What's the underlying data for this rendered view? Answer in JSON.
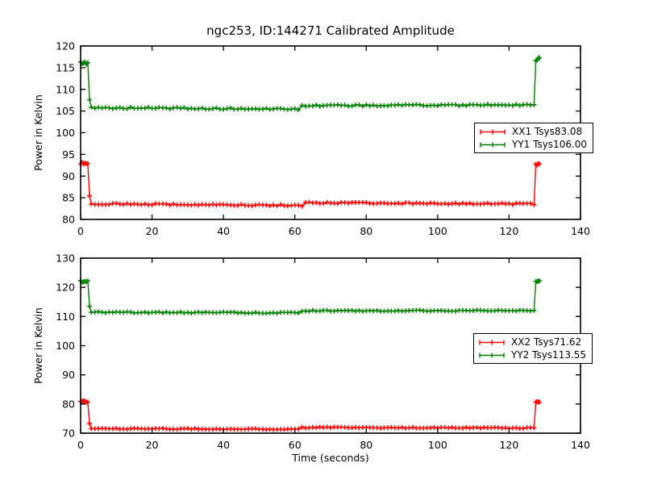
{
  "title": "ngc253, ID:144271 Calibrated Amplitude",
  "colors": {
    "red": "#ff0000",
    "green": "#008000",
    "axis": "#000000",
    "background": "#ffffff"
  },
  "chart_data": [
    {
      "type": "line",
      "marker": "+",
      "ylabel": "Power in Kelvin",
      "xlabel": "",
      "xlim": [
        0,
        140
      ],
      "ylim": [
        80,
        120
      ],
      "xticks": [
        0,
        20,
        40,
        60,
        80,
        100,
        120,
        140
      ],
      "yticks": [
        80,
        85,
        90,
        95,
        100,
        105,
        110,
        115,
        120
      ],
      "grid": false,
      "legend_position": "center right",
      "series": [
        {
          "name": "XX1 Tsys83.08",
          "color": "#ff0000",
          "segments": [
            {
              "t0": 0,
              "t1": 2,
              "y0": 93.0,
              "y1": 92.9,
              "step": 0.4,
              "noise": 0.25
            },
            {
              "t0": 2.5,
              "t1": 2.5,
              "y0": 85.4,
              "y1": 85.4,
              "step": 1,
              "noise": 0
            },
            {
              "t0": 3,
              "t1": 61,
              "y0": 83.6,
              "y1": 83.25,
              "step": 1,
              "noise": 0.16
            },
            {
              "t0": 62,
              "t1": 62,
              "y0": 83.05,
              "y1": 83.05,
              "step": 1,
              "noise": 0
            },
            {
              "t0": 63,
              "t1": 127,
              "y0": 83.85,
              "y1": 83.55,
              "step": 1,
              "noise": 0.16
            },
            {
              "t0": 127.5,
              "t1": 128.5,
              "y0": 92.55,
              "y1": 92.85,
              "step": 0.35,
              "noise": 0.3
            }
          ]
        },
        {
          "name": "YY1 Tsys106.00",
          "color": "#008000",
          "segments": [
            {
              "t0": 0,
              "t1": 2,
              "y0": 116.2,
              "y1": 116.0,
              "step": 0.4,
              "noise": 0.3
            },
            {
              "t0": 2.5,
              "t1": 2.5,
              "y0": 107.6,
              "y1": 107.6,
              "step": 1,
              "noise": 0
            },
            {
              "t0": 3,
              "t1": 61,
              "y0": 105.75,
              "y1": 105.45,
              "step": 1,
              "noise": 0.18
            },
            {
              "t0": 62,
              "t1": 127,
              "y0": 106.25,
              "y1": 106.4,
              "step": 1,
              "noise": 0.18
            },
            {
              "t0": 127.5,
              "t1": 128.5,
              "y0": 116.7,
              "y1": 117.2,
              "step": 0.35,
              "noise": 0.35
            }
          ]
        }
      ]
    },
    {
      "type": "line",
      "marker": "+",
      "ylabel": "Power in Kelvin",
      "xlabel": "Time (seconds)",
      "xlim": [
        0,
        140
      ],
      "ylim": [
        70,
        130
      ],
      "xticks": [
        0,
        20,
        40,
        60,
        80,
        100,
        120,
        140
      ],
      "yticks": [
        70,
        80,
        90,
        100,
        110,
        120,
        130
      ],
      "grid": false,
      "legend_position": "center right",
      "series": [
        {
          "name": "XX2 Tsys71.62",
          "color": "#ff0000",
          "segments": [
            {
              "t0": 0,
              "t1": 2,
              "y0": 81.0,
              "y1": 80.9,
              "step": 0.4,
              "noise": 0.25
            },
            {
              "t0": 2.5,
              "t1": 2.5,
              "y0": 73.3,
              "y1": 73.3,
              "step": 1,
              "noise": 0
            },
            {
              "t0": 3,
              "t1": 61,
              "y0": 71.6,
              "y1": 71.35,
              "step": 1,
              "noise": 0.18
            },
            {
              "t0": 62,
              "t1": 127,
              "y0": 71.95,
              "y1": 71.75,
              "step": 1,
              "noise": 0.18
            },
            {
              "t0": 127.5,
              "t1": 128.5,
              "y0": 80.6,
              "y1": 80.9,
              "step": 0.35,
              "noise": 0.3
            }
          ]
        },
        {
          "name": "YY2 Tsys113.55",
          "color": "#008000",
          "segments": [
            {
              "t0": 0,
              "t1": 2,
              "y0": 122.1,
              "y1": 121.9,
              "step": 0.4,
              "noise": 0.3
            },
            {
              "t0": 2.5,
              "t1": 2.5,
              "y0": 113.5,
              "y1": 113.5,
              "step": 1,
              "noise": 0
            },
            {
              "t0": 3,
              "t1": 61,
              "y0": 111.45,
              "y1": 111.25,
              "step": 1,
              "noise": 0.2
            },
            {
              "t0": 62,
              "t1": 127,
              "y0": 111.95,
              "y1": 112.05,
              "step": 1,
              "noise": 0.2
            },
            {
              "t0": 127.5,
              "t1": 128.5,
              "y0": 122.0,
              "y1": 122.4,
              "step": 0.35,
              "noise": 0.35
            }
          ]
        }
      ]
    }
  ]
}
